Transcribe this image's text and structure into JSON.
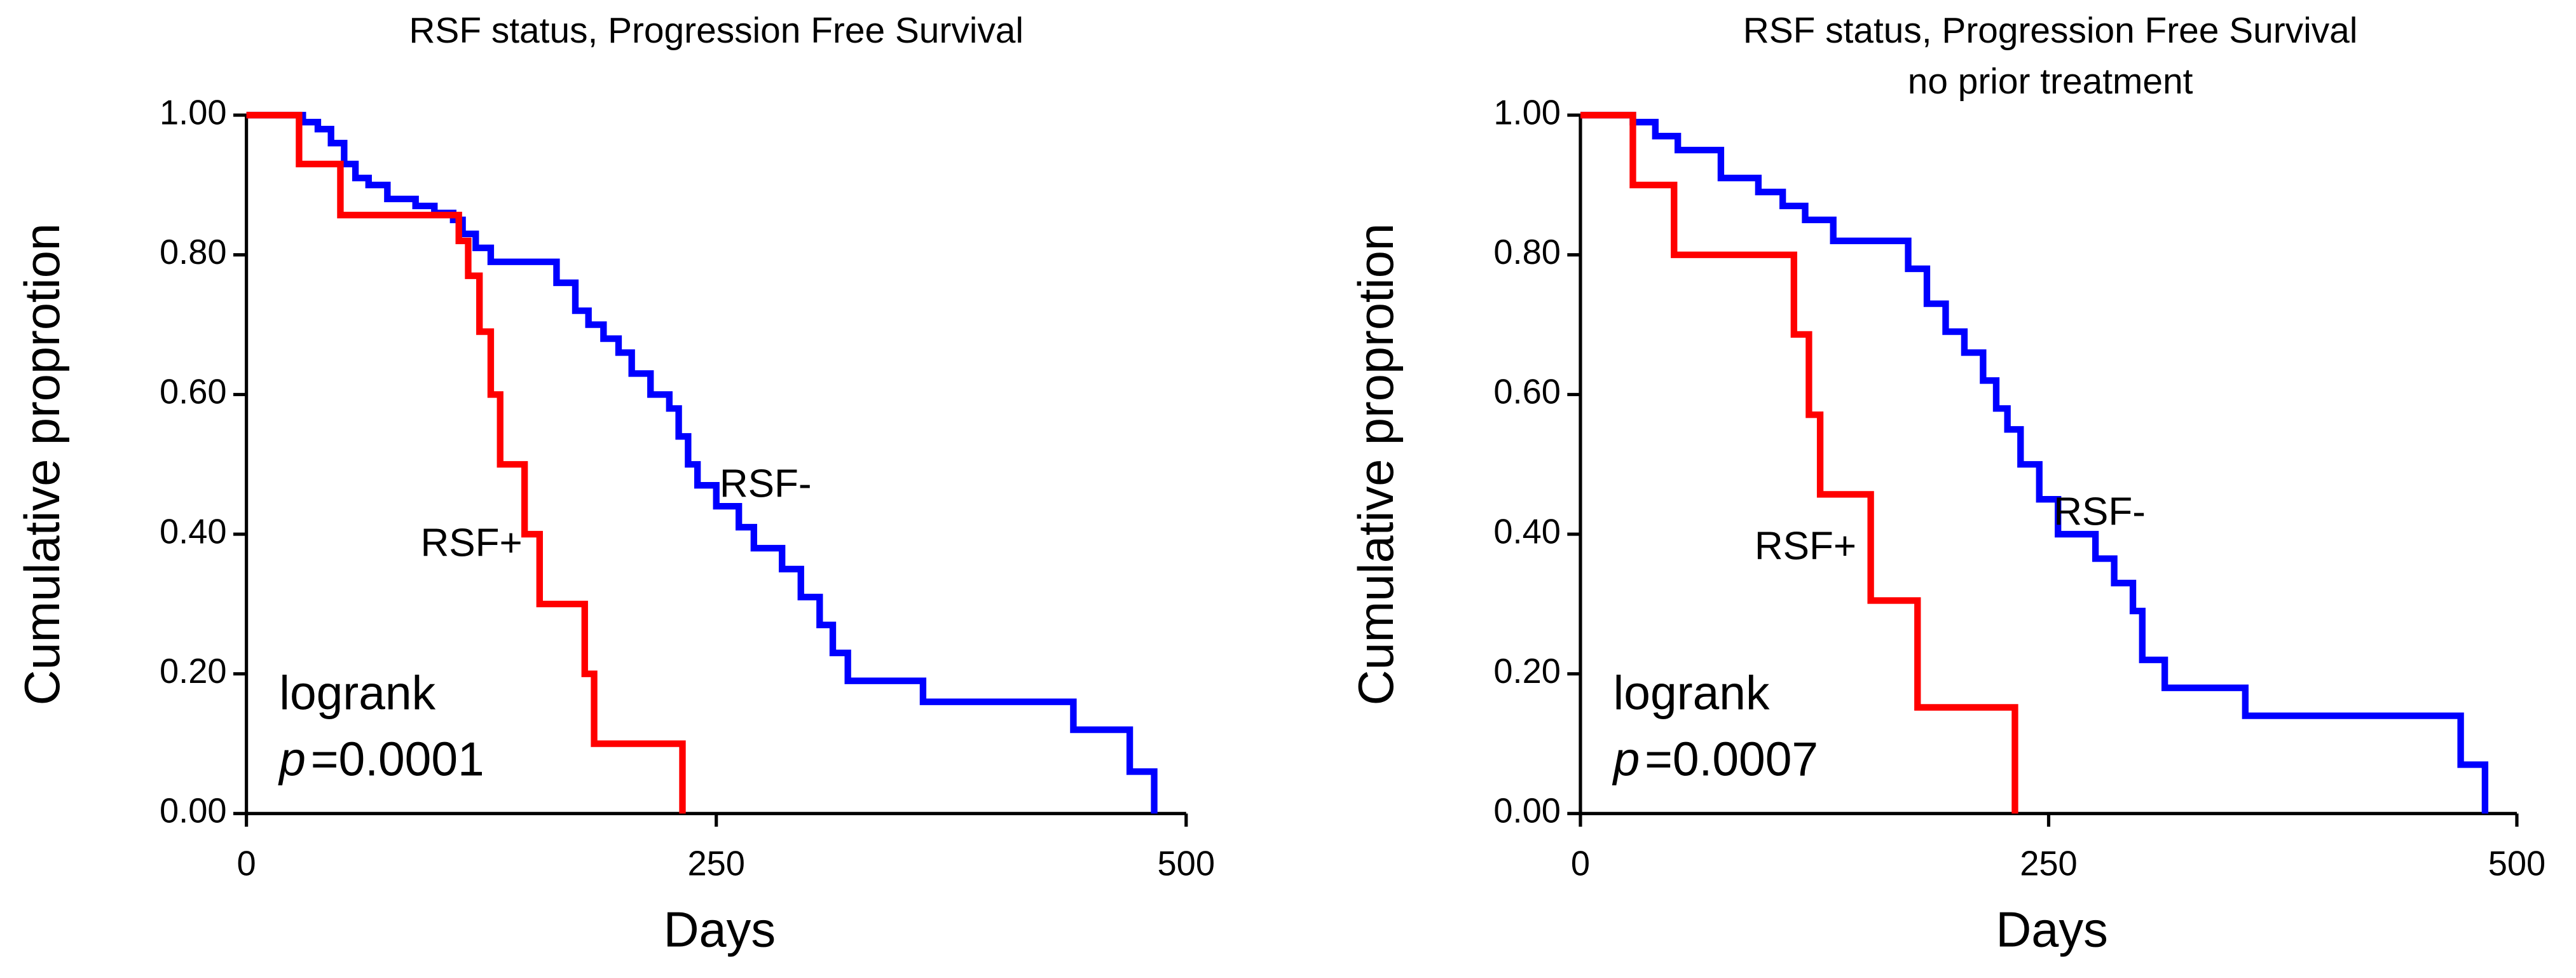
{
  "chart_data": [
    {
      "type": "step",
      "title": "RSF status, Progression Free Survival",
      "x_label": "Days",
      "y_label": "Cumulative proprotion",
      "xlim": [
        0,
        500
      ],
      "xticks": [
        0,
        250,
        500
      ],
      "ylim": [
        0,
        1
      ],
      "yticks": [
        {
          "value": 0,
          "label": "0.00"
        },
        {
          "value": 0.2,
          "label": "0.20"
        },
        {
          "value": 0.4,
          "label": "0.40"
        },
        {
          "value": 0.6,
          "label": "0.60"
        },
        {
          "value": 0.8,
          "label": "0.80"
        },
        {
          "value": 1,
          "label": "1.00"
        }
      ],
      "annotation": {
        "test": "logrank",
        "p_symbol": "p",
        "p_value": "=0.0001"
      },
      "series": [
        {
          "name": "RSF-",
          "color": "#0000ff",
          "x": [
            0,
            30,
            38,
            45,
            52,
            58,
            65,
            75,
            90,
            100,
            110,
            115,
            122,
            130,
            165,
            175,
            182,
            190,
            198,
            205,
            215,
            225,
            230,
            235,
            240,
            250,
            262,
            270,
            285,
            295,
            305,
            312,
            320,
            360,
            440,
            470,
            483
          ],
          "values": [
            1,
            0.99,
            0.98,
            0.96,
            0.93,
            0.91,
            0.9,
            0.88,
            0.87,
            0.86,
            0.85,
            0.83,
            0.81,
            0.79,
            0.76,
            0.72,
            0.7,
            0.68,
            0.66,
            0.63,
            0.6,
            0.58,
            0.54,
            0.5,
            0.47,
            0.44,
            0.41,
            0.38,
            0.35,
            0.31,
            0.27,
            0.23,
            0.19,
            0.16,
            0.12,
            0.06,
            0
          ]
        },
        {
          "name": "RSF+",
          "color": "#ff0000",
          "x": [
            0,
            28,
            50,
            113,
            118,
            124,
            130,
            135,
            148,
            156,
            180,
            185,
            232
          ],
          "values": [
            1,
            0.93,
            0.857,
            0.82,
            0.77,
            0.69,
            0.6,
            0.5,
            0.4,
            0.3,
            0.2,
            0.1,
            0
          ]
        }
      ]
    },
    {
      "type": "step",
      "title": "RSF status, Progression Free Survival",
      "subtitle": "no prior treatment",
      "x_label": "Days",
      "y_label": "Cumulative proprotion",
      "xlim": [
        0,
        500
      ],
      "xticks": [
        0,
        250,
        500
      ],
      "ylim": [
        0,
        1
      ],
      "yticks": [
        {
          "value": 0,
          "label": "0.00"
        },
        {
          "value": 0.2,
          "label": "0.20"
        },
        {
          "value": 0.4,
          "label": "0.40"
        },
        {
          "value": 0.6,
          "label": "0.60"
        },
        {
          "value": 0.8,
          "label": "0.80"
        },
        {
          "value": 1,
          "label": "1.00"
        }
      ],
      "annotation": {
        "test": "logrank",
        "p_symbol": "p",
        "p_value": "=0.0007"
      },
      "series": [
        {
          "name": "RSF-",
          "color": "#0000ff",
          "x": [
            0,
            28,
            40,
            52,
            75,
            95,
            108,
            120,
            135,
            175,
            185,
            195,
            205,
            215,
            222,
            228,
            235,
            245,
            255,
            275,
            285,
            295,
            300,
            312,
            355,
            470,
            483
          ],
          "values": [
            1,
            0.99,
            0.97,
            0.95,
            0.91,
            0.89,
            0.87,
            0.85,
            0.82,
            0.78,
            0.73,
            0.69,
            0.66,
            0.62,
            0.58,
            0.55,
            0.5,
            0.45,
            0.4,
            0.365,
            0.33,
            0.29,
            0.22,
            0.18,
            0.14,
            0.07,
            0
          ]
        },
        {
          "name": "RSF+",
          "color": "#ff0000",
          "x": [
            0,
            28,
            50,
            114,
            122,
            128,
            155,
            180,
            232
          ],
          "values": [
            1,
            0.9,
            0.8,
            0.686,
            0.571,
            0.457,
            0.305,
            0.152,
            0
          ]
        }
      ]
    }
  ]
}
